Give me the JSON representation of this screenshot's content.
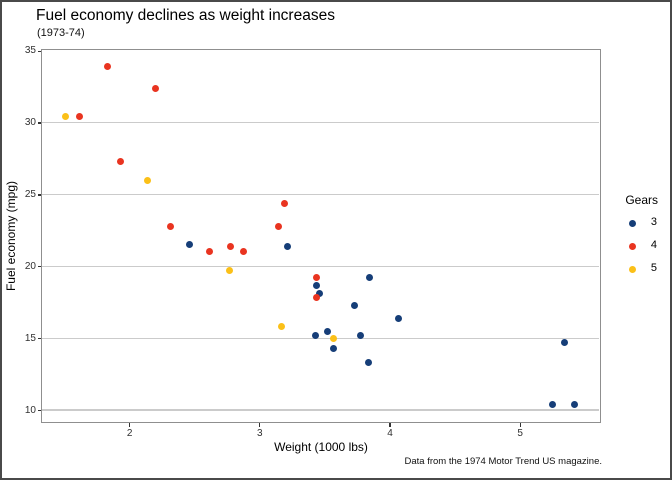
{
  "chart_data": {
    "type": "scatter",
    "title": "Fuel economy declines as weight increases",
    "subtitle": "(1973-74)",
    "caption": "Data from the 1974 Motor Trend US magazine.",
    "xlabel": "Weight (1000 lbs)",
    "ylabel": "Fuel economy (mpg)",
    "xlim": [
      1.33,
      5.61
    ],
    "ylim": [
      9.24,
      35.05
    ],
    "xticks": [
      2,
      3,
      4,
      5
    ],
    "yticks": [
      10,
      15,
      20,
      25,
      30,
      35
    ],
    "grid": "horizontal-major-only",
    "legend": {
      "title": "Gears",
      "position": "right",
      "entries": [
        {
          "label": "3",
          "color": "#163E78"
        },
        {
          "label": "4",
          "color": "#E93420"
        },
        {
          "label": "5",
          "color": "#FBC018"
        }
      ]
    },
    "series": [
      {
        "name": "3",
        "color": "#163E78",
        "points": [
          [
            3.215,
            21.4
          ],
          [
            3.44,
            18.7
          ],
          [
            3.46,
            18.1
          ],
          [
            3.57,
            14.3
          ],
          [
            4.07,
            16.4
          ],
          [
            3.73,
            17.3
          ],
          [
            3.78,
            15.2
          ],
          [
            5.25,
            10.4
          ],
          [
            5.424,
            10.4
          ],
          [
            5.345,
            14.7
          ],
          [
            2.465,
            21.5
          ],
          [
            3.52,
            15.5
          ],
          [
            3.435,
            15.2
          ],
          [
            3.84,
            13.3
          ],
          [
            3.845,
            19.2
          ]
        ]
      },
      {
        "name": "4",
        "color": "#E93420",
        "points": [
          [
            2.62,
            21.0
          ],
          [
            2.875,
            21.0
          ],
          [
            2.32,
            22.8
          ],
          [
            3.19,
            24.4
          ],
          [
            3.15,
            22.8
          ],
          [
            3.44,
            19.2
          ],
          [
            3.44,
            17.8
          ],
          [
            2.2,
            32.4
          ],
          [
            1.615,
            30.4
          ],
          [
            1.835,
            33.9
          ],
          [
            1.935,
            27.3
          ],
          [
            2.78,
            21.4
          ]
        ]
      },
      {
        "name": "5",
        "color": "#FBC018",
        "points": [
          [
            2.14,
            26.0
          ],
          [
            1.513,
            30.4
          ],
          [
            3.17,
            15.8
          ],
          [
            2.77,
            19.7
          ],
          [
            3.57,
            15.0
          ]
        ]
      }
    ]
  }
}
